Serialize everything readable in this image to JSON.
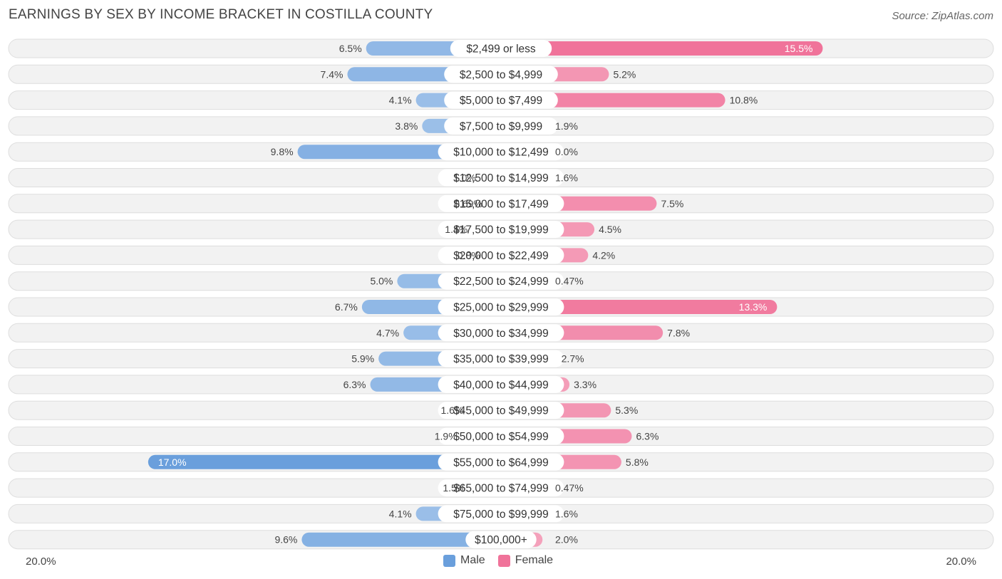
{
  "header": {
    "title": "EARNINGS BY SEX BY INCOME BRACKET IN COSTILLA COUNTY",
    "source": "Source: ZipAtlas.com"
  },
  "axis": {
    "left_label": "20.0%",
    "right_label": "20.0%"
  },
  "legend": {
    "male": "Male",
    "female": "Female"
  },
  "colors": {
    "male_light": "#a9c8ec",
    "male_dark": "#6a9fdc",
    "female_light": "#f5a8c0",
    "female_dark": "#f0739a",
    "row_bg": "#f2f2f2",
    "row_border": "#dedede"
  },
  "chart_data": {
    "type": "bar",
    "orientation": "horizontal-diverging",
    "title": "EARNINGS BY SEX BY INCOME BRACKET IN COSTILLA COUNTY",
    "xlim": [
      -20,
      20
    ],
    "categories": [
      "$2,499 or less",
      "$2,500 to $4,999",
      "$5,000 to $7,499",
      "$7,500 to $9,999",
      "$10,000 to $12,499",
      "$12,500 to $14,999",
      "$15,000 to $17,499",
      "$17,500 to $19,999",
      "$20,000 to $22,499",
      "$22,500 to $24,999",
      "$25,000 to $29,999",
      "$30,000 to $34,999",
      "$35,000 to $39,999",
      "$40,000 to $44,999",
      "$45,000 to $49,999",
      "$50,000 to $54,999",
      "$55,000 to $64,999",
      "$65,000 to $74,999",
      "$75,000 to $99,999",
      "$100,000+"
    ],
    "series": [
      {
        "name": "Male",
        "values": [
          6.5,
          7.4,
          4.1,
          3.8,
          9.8,
          1.0,
          0.69,
          1.4,
          0.8,
          5.0,
          6.7,
          4.7,
          5.9,
          6.3,
          1.6,
          1.9,
          17.0,
          1.5,
          4.1,
          9.6
        ],
        "labels": [
          "6.5%",
          "7.4%",
          "4.1%",
          "3.8%",
          "9.8%",
          "1.0%",
          "0.69%",
          "1.4%",
          "0.8%",
          "5.0%",
          "6.7%",
          "4.7%",
          "5.9%",
          "6.3%",
          "1.6%",
          "1.9%",
          "17.0%",
          "1.5%",
          "4.1%",
          "9.6%"
        ]
      },
      {
        "name": "Female",
        "values": [
          15.5,
          5.2,
          10.8,
          1.9,
          0.0,
          1.6,
          7.5,
          4.5,
          4.2,
          0.47,
          13.3,
          7.8,
          2.7,
          3.3,
          5.3,
          6.3,
          5.8,
          0.47,
          1.6,
          2.0
        ],
        "labels": [
          "15.5%",
          "5.2%",
          "10.8%",
          "1.9%",
          "0.0%",
          "1.6%",
          "7.5%",
          "4.5%",
          "4.2%",
          "0.47%",
          "13.3%",
          "7.8%",
          "2.7%",
          "3.3%",
          "5.3%",
          "6.3%",
          "5.8%",
          "0.47%",
          "1.6%",
          "2.0%"
        ]
      }
    ]
  }
}
